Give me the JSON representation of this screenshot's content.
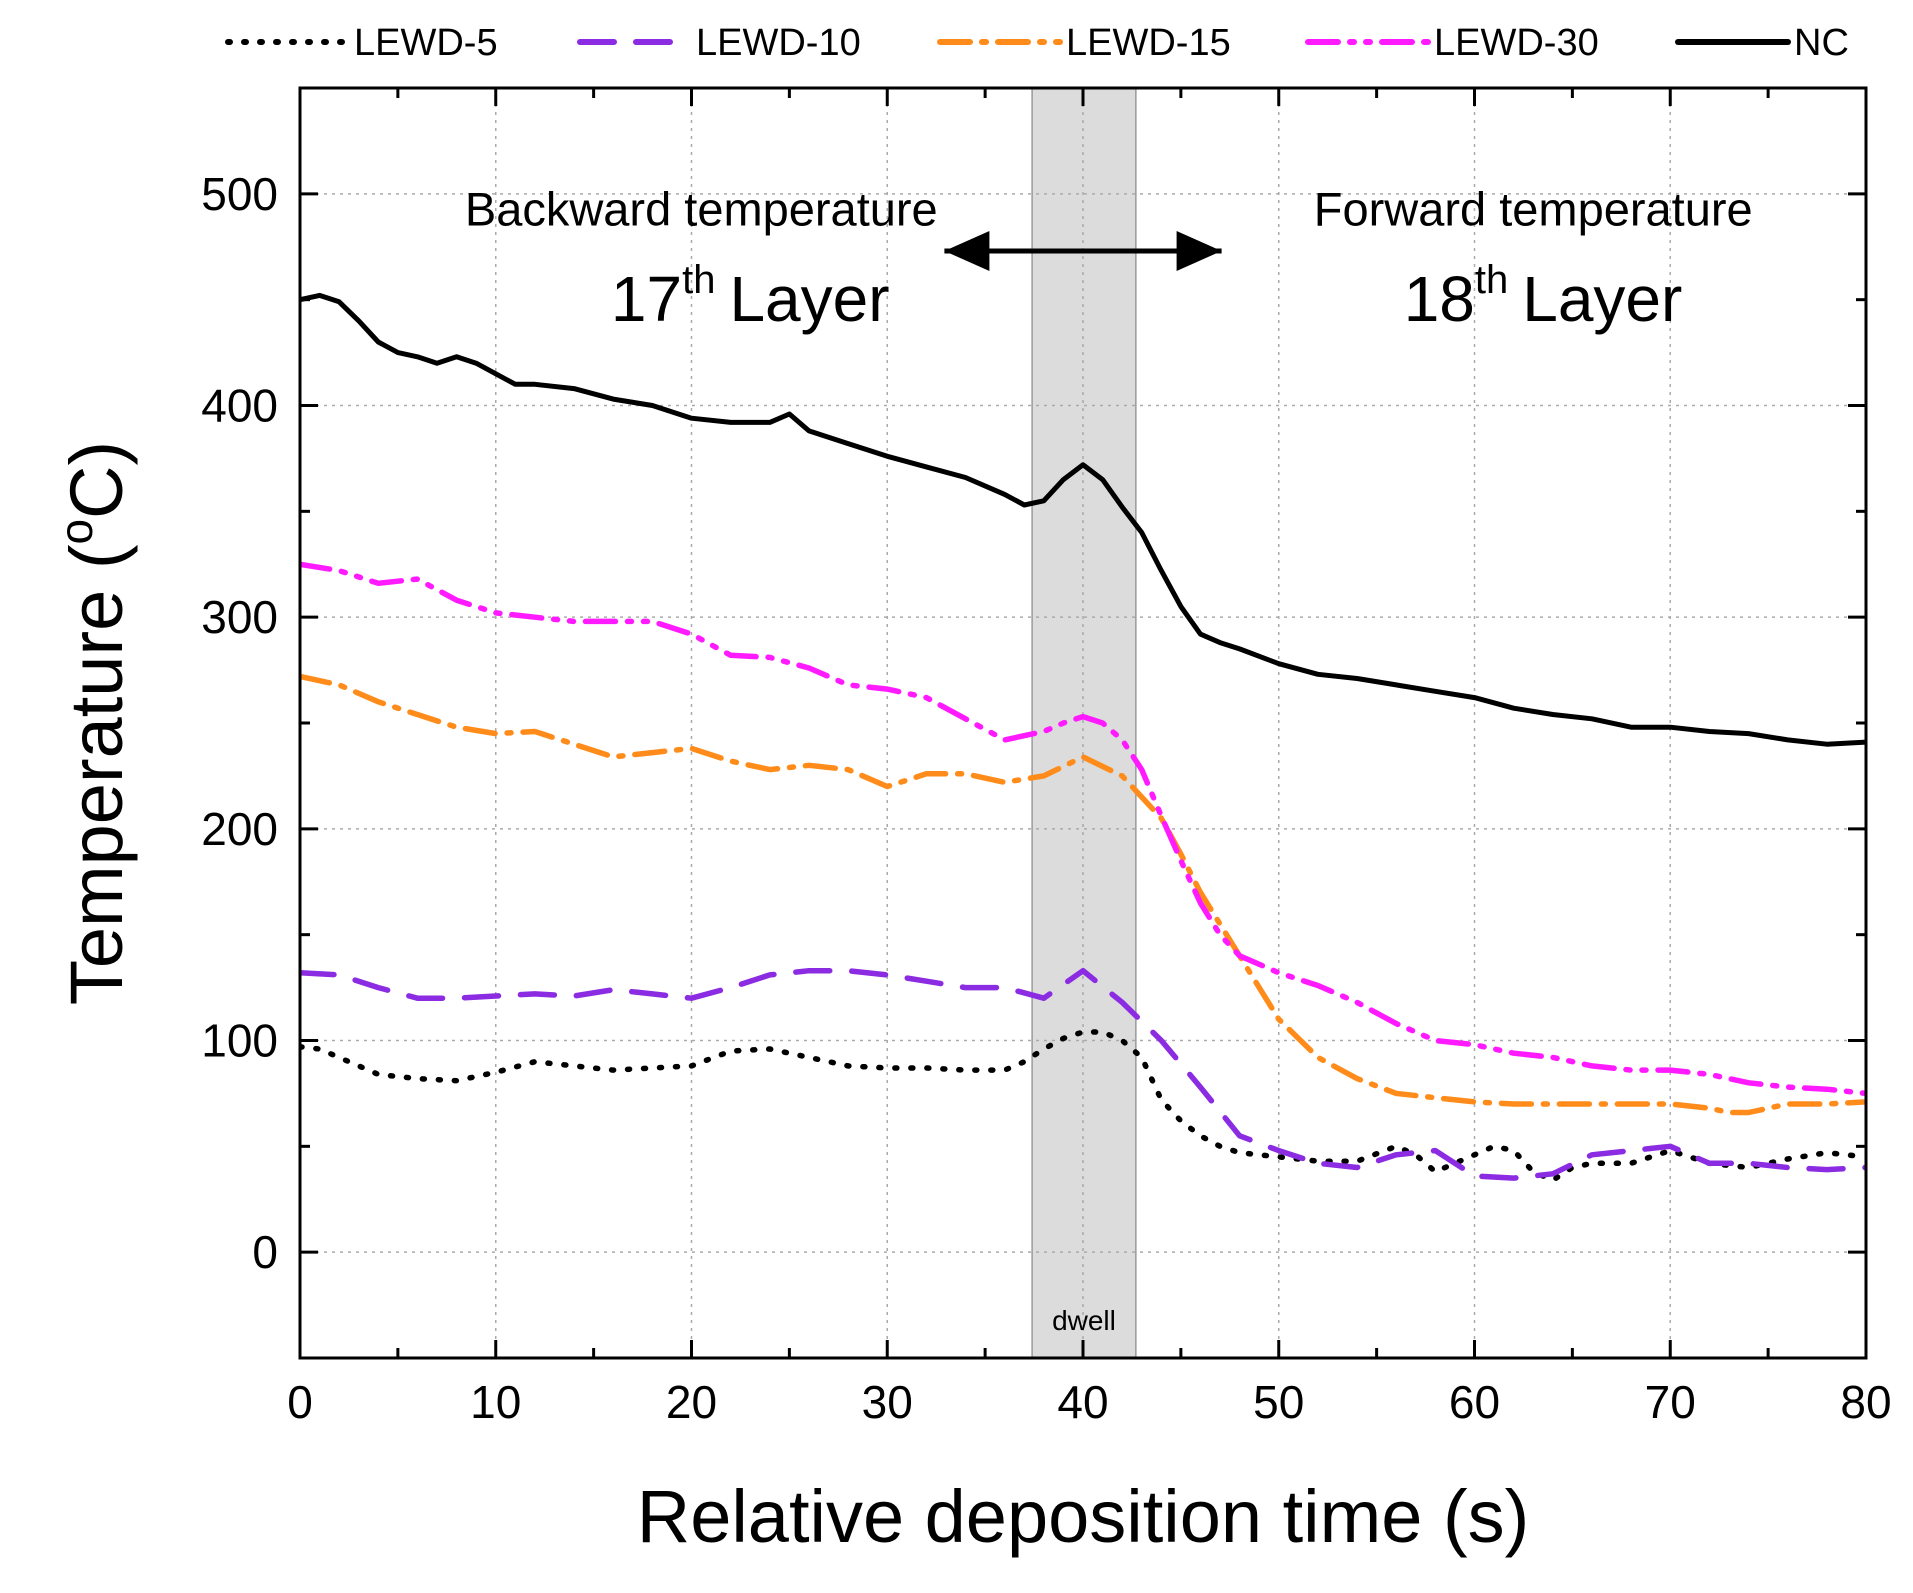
{
  "chart_data": {
    "type": "line",
    "xlabel": "Relative deposition time (s)",
    "ylabel": "Temperature (°C)",
    "ylabel_parts": {
      "main": "Temperature (",
      "sup": "o",
      "rest": "C)"
    },
    "xlim": [
      0,
      80
    ],
    "ylim": [
      -50,
      550
    ],
    "xticks": [
      0,
      10,
      20,
      30,
      40,
      50,
      60,
      70,
      80
    ],
    "yticks": [
      0,
      100,
      200,
      300,
      400,
      500
    ],
    "grid": true,
    "legend_position": "top",
    "dwell_region": {
      "x_start": 37.4,
      "x_end": 42.7,
      "label": "dwell"
    },
    "annotations": {
      "backward_label": "Backward temperature",
      "forward_label": "Forward temperature",
      "backward_layer": {
        "num": "17",
        "sup": "th",
        "word": "Layer"
      },
      "forward_layer": {
        "num": "18",
        "sup": "th",
        "word": "Layer"
      },
      "arrow": {
        "x_start": 32,
        "x_end": 48,
        "y": 473
      }
    },
    "series": [
      {
        "name": "LEWD-5",
        "color": "#000000",
        "dash": "dotted",
        "x": [
          0,
          1,
          3,
          4,
          6,
          8,
          10,
          12,
          14,
          16,
          18,
          20,
          22,
          24,
          26,
          28,
          30,
          32,
          34,
          36,
          37,
          38,
          39,
          40,
          41,
          42,
          43,
          44,
          45,
          46,
          47,
          48,
          50,
          52,
          54,
          56,
          57,
          58,
          59,
          60,
          61,
          62,
          63,
          64,
          65,
          66,
          68,
          70,
          72,
          74,
          76,
          78,
          80
        ],
        "y": [
          97,
          96,
          88,
          84,
          82,
          81,
          85,
          90,
          88,
          86,
          87,
          88,
          95,
          96,
          92,
          88,
          87,
          87,
          86,
          86,
          90,
          96,
          101,
          104,
          104,
          100,
          92,
          72,
          62,
          55,
          50,
          47,
          45,
          43,
          43,
          50,
          46,
          38,
          42,
          46,
          50,
          48,
          38,
          34,
          40,
          42,
          42,
          48,
          42,
          40,
          44,
          47,
          45
        ]
      },
      {
        "name": "LEWD-10",
        "color": "#8b2be2",
        "dash": "dashed",
        "x": [
          0,
          2,
          4,
          6,
          8,
          10,
          12,
          14,
          16,
          18,
          20,
          22,
          24,
          26,
          28,
          30,
          32,
          34,
          36,
          38,
          40,
          42,
          44,
          46,
          48,
          50,
          52,
          54,
          56,
          58,
          60,
          62,
          64,
          66,
          68,
          70,
          72,
          74,
          76,
          78,
          80
        ],
        "y": [
          132,
          131,
          125,
          120,
          120,
          121,
          122,
          121,
          124,
          122,
          120,
          125,
          131,
          133,
          133,
          131,
          128,
          125,
          125,
          120,
          133,
          118,
          100,
          78,
          55,
          48,
          42,
          40,
          46,
          48,
          36,
          35,
          37,
          46,
          48,
          50,
          42,
          42,
          40,
          39,
          40
        ]
      },
      {
        "name": "LEWD-15",
        "color": "#ff8c1a",
        "dash": "dashdot",
        "x": [
          0,
          2,
          4,
          6,
          8,
          10,
          12,
          14,
          16,
          18,
          20,
          22,
          24,
          26,
          28,
          30,
          32,
          34,
          36,
          38,
          40,
          42,
          44,
          45,
          46,
          47,
          48,
          50,
          52,
          54,
          56,
          58,
          60,
          62,
          64,
          66,
          68,
          70,
          72,
          73,
          74,
          76,
          78,
          80
        ],
        "y": [
          272,
          268,
          260,
          254,
          248,
          245,
          246,
          240,
          234,
          236,
          238,
          232,
          228,
          230,
          228,
          220,
          226,
          226,
          222,
          225,
          234,
          225,
          205,
          188,
          170,
          155,
          140,
          110,
          92,
          82,
          75,
          73,
          71,
          70,
          70,
          70,
          70,
          70,
          68,
          66,
          66,
          70,
          70,
          71
        ]
      },
      {
        "name": "LEWD-30",
        "color": "#ff1aff",
        "dash": "dashdotdot",
        "x": [
          0,
          2,
          4,
          6,
          8,
          10,
          12,
          14,
          16,
          18,
          20,
          22,
          24,
          26,
          28,
          30,
          32,
          34,
          36,
          38,
          39,
          40,
          41,
          42,
          43,
          44,
          45,
          46,
          47,
          48,
          50,
          52,
          54,
          56,
          58,
          60,
          62,
          64,
          66,
          68,
          70,
          72,
          74,
          76,
          78,
          80
        ],
        "y": [
          325,
          322,
          316,
          318,
          308,
          302,
          300,
          298,
          298,
          298,
          292,
          282,
          281,
          276,
          268,
          266,
          262,
          252,
          242,
          246,
          250,
          253,
          250,
          242,
          228,
          206,
          185,
          165,
          150,
          140,
          132,
          126,
          118,
          108,
          100,
          98,
          94,
          92,
          88,
          86,
          86,
          84,
          80,
          78,
          77,
          75
        ]
      },
      {
        "name": "NC",
        "color": "#000000",
        "dash": "solid",
        "x": [
          0,
          1,
          2,
          3,
          4,
          5,
          6,
          7,
          8,
          9,
          10,
          11,
          12,
          14,
          16,
          18,
          20,
          22,
          24,
          25,
          26,
          28,
          30,
          32,
          34,
          36,
          37,
          38,
          39,
          40,
          41,
          42,
          43,
          44,
          45,
          46,
          47,
          48,
          50,
          52,
          54,
          56,
          58,
          60,
          62,
          64,
          66,
          68,
          70,
          72,
          74,
          76,
          78,
          80
        ],
        "y": [
          450,
          452,
          449,
          440,
          430,
          425,
          423,
          420,
          423,
          420,
          415,
          410,
          410,
          408,
          403,
          400,
          394,
          392,
          392,
          396,
          388,
          382,
          376,
          371,
          366,
          358,
          353,
          355,
          365,
          372,
          365,
          352,
          340,
          322,
          305,
          292,
          288,
          285,
          278,
          273,
          271,
          268,
          265,
          262,
          257,
          254,
          252,
          248,
          248,
          246,
          245,
          242,
          240,
          241
        ]
      }
    ]
  }
}
